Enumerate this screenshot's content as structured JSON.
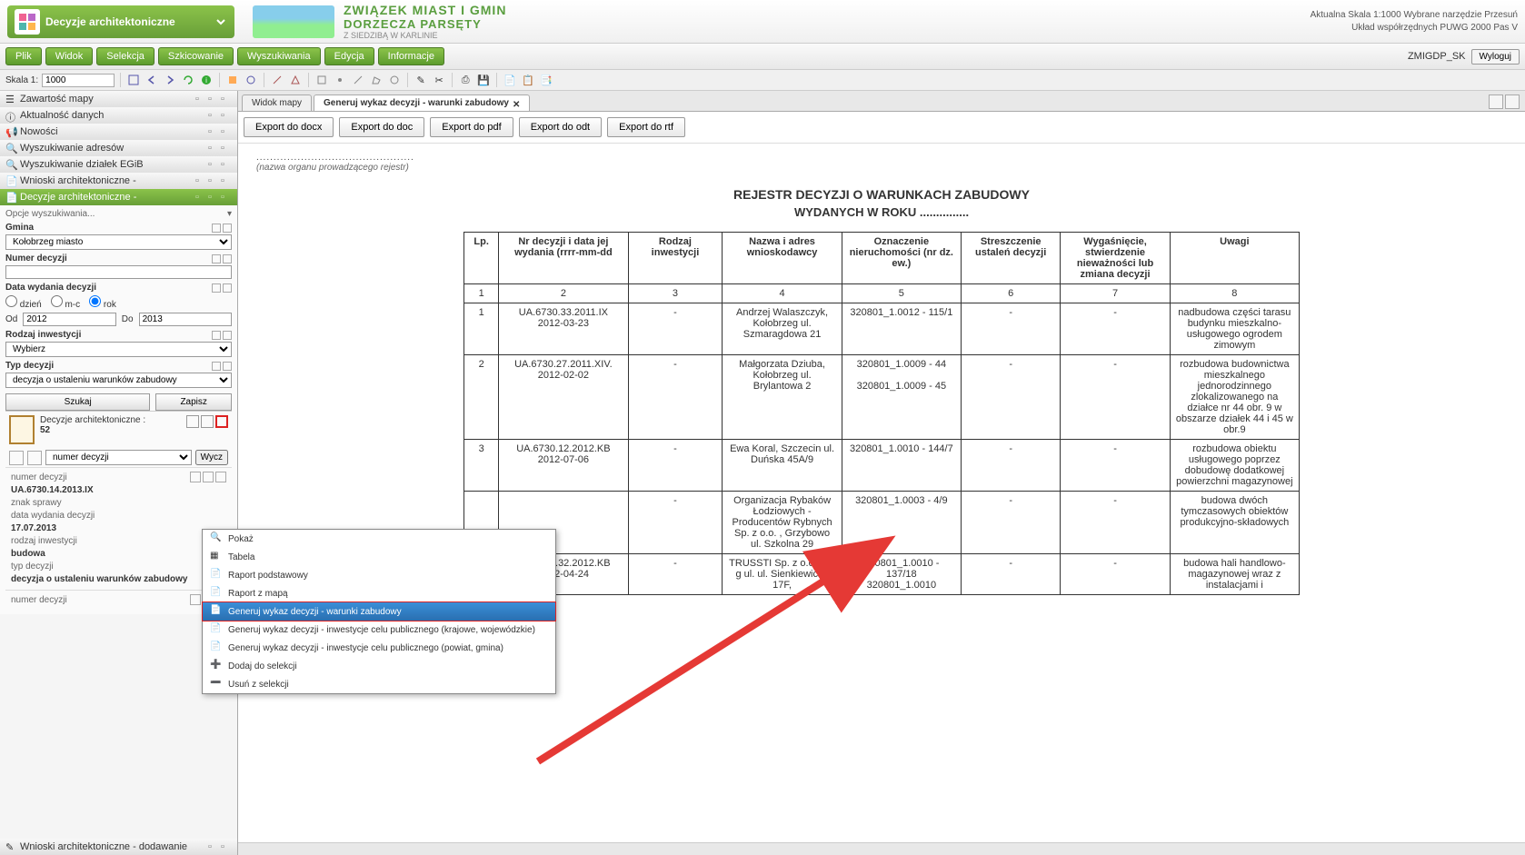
{
  "header": {
    "app_title": "Decyzje architektoniczne",
    "org_line1": "ZWIĄZEK MIAST I GMIN",
    "org_line2": "DORZECZA PARSĘTY",
    "org_line3": "Z SIEDZIBĄ W KARLINIE",
    "status_line1": "Aktualna Skala 1:1000   Wybrane narzędzie Przesuń",
    "status_line2": "Układ współrzędnych PUWG 2000 Pas V"
  },
  "menubar": {
    "items": [
      "Plik",
      "Widok",
      "Selekcja",
      "Szkicowanie",
      "Wyszukiwania",
      "Edycja",
      "Informacje"
    ],
    "user": "ZMIGDP_SK",
    "logout": "Wyloguj"
  },
  "toolbar": {
    "scale_label": "Skala 1:",
    "scale_value": "1000"
  },
  "sidebar": {
    "sections": [
      {
        "label": "Zawartość mapy"
      },
      {
        "label": "Aktualność danych"
      },
      {
        "label": "Nowości"
      },
      {
        "label": "Wyszukiwanie adresów"
      },
      {
        "label": "Wyszukiwanie działek EGiB"
      },
      {
        "label": "Wnioski architektoniczne -"
      },
      {
        "label": "Decyzje architektoniczne -",
        "active": true
      }
    ],
    "search": {
      "opts_label": "Opcje wyszukiwania...",
      "gmina_label": "Gmina",
      "gmina_value": "Kołobrzeg miasto",
      "numer_label": "Numer decyzji",
      "numer_value": "",
      "data_label": "Data wydania decyzji",
      "radio_dzien": "dzień",
      "radio_mc": "m-c",
      "radio_rok": "rok",
      "od_label": "Od",
      "od_value": "2012",
      "do_label": "Do",
      "do_value": "2013",
      "rodzaj_label": "Rodzaj inwestycji",
      "rodzaj_value": "Wybierz",
      "typ_label": "Typ decyzji",
      "typ_value": "decyzja o ustaleniu warunków zabudowy",
      "szukaj": "Szukaj",
      "zapisz": "Zapisz"
    },
    "results": {
      "title": "Decyzje architektoniczne :",
      "count": "52",
      "sort_field": "numer decyzji",
      "wyczysc": "Wycz",
      "item": {
        "l1_label": "numer decyzji",
        "l1_val": "UA.6730.14.2013.IX",
        "l2_label": "znak sprawy",
        "l3_label": "data wydania decyzji",
        "l3_val": "17.07.2013",
        "l4_label": "rodzaj inwestycji",
        "l4_val": "budowa",
        "l5_label": "typ decyzji",
        "l5_val": "decyzja o ustaleniu warunków zabudowy",
        "l6_label": "numer decyzji"
      }
    },
    "footer": "Wnioski architektoniczne - dodawanie"
  },
  "context_menu": {
    "items": [
      {
        "label": "Pokaż",
        "icon": "zoom"
      },
      {
        "label": "Tabela",
        "icon": "table"
      },
      {
        "label": "Raport podstawowy",
        "icon": "doc"
      },
      {
        "label": "Raport z mapą",
        "icon": "doc"
      },
      {
        "label": "Generuj wykaz decyzji - warunki zabudowy",
        "icon": "doc",
        "selected": true
      },
      {
        "label": "Generuj wykaz decyzji - inwestycje celu publicznego (krajowe, wojewódzkie)",
        "icon": "doc"
      },
      {
        "label": "Generuj wykaz decyzji - inwestycje celu publicznego (powiat, gmina)",
        "icon": "doc"
      },
      {
        "label": "Dodaj do selekcji",
        "icon": "plus"
      },
      {
        "label": "Usuń z selekcji",
        "icon": "minus"
      }
    ]
  },
  "tabs": {
    "tab1": "Widok mapy",
    "tab2": "Generuj wykaz decyzji - warunki zabudowy"
  },
  "export": {
    "buttons": [
      "Export do docx",
      "Export do doc",
      "Export do pdf",
      "Export do odt",
      "Export do rtf"
    ]
  },
  "document": {
    "meta_dots": "..............................................",
    "meta_sub": "(nazwa organu prowadzącego rejestr)",
    "title": "REJESTR DECYZJI O WARUNKACH ZABUDOWY",
    "subtitle": "WYDANYCH W ROKU ...............",
    "columns": [
      "Lp.",
      "Nr decyzji i data jej wydania (rrrr-mm-dd",
      "Rodzaj inwestycji",
      "Nazwa i adres wnioskodawcy",
      "Oznaczenie nieruchomości (nr dz. ew.)",
      "Streszczenie ustaleń decyzji",
      "Wygaśnięcie, stwierdzenie nieważności lub zmiana decyzji",
      "Uwagi"
    ],
    "numrow": [
      "1",
      "2",
      "3",
      "4",
      "5",
      "6",
      "7",
      "8"
    ],
    "rows": [
      {
        "lp": "1",
        "nr": "UA.6730.33.2011.IX 2012-03-23",
        "rodzaj": "-",
        "nazwa": "Andrzej Walaszczyk, Kołobrzeg ul. Szmaragdowa 21",
        "ozn": "320801_1.0012 - 115/1",
        "stresz": "-",
        "wyg": "-",
        "uwagi": "nadbudowa części tarasu budynku mieszkalno-usługowego ogrodem zimowym"
      },
      {
        "lp": "2",
        "nr": "UA.6730.27.2011.XIV. 2012-02-02",
        "rodzaj": "-",
        "nazwa": "Małgorzata  Dziuba, Kołobrzeg ul. Brylantowa 2",
        "ozn": "320801_1.0009 - 44\n\n320801_1.0009 - 45",
        "stresz": "-",
        "wyg": "-",
        "uwagi": "rozbudowa budownictwa mieszkalnego jednorodzinnego zlokalizowanego na działce nr 44 obr. 9 w obszarze działek 44 i 45 w obr.9"
      },
      {
        "lp": "3",
        "nr": "UA.6730.12.2012.KB 2012-07-06",
        "rodzaj": "-",
        "nazwa": "Ewa Koral,  Szczecin ul. Duńska 45A/9",
        "ozn": "320801_1.0010 - 144/7",
        "stresz": "-",
        "wyg": "-",
        "uwagi": "rozbudowa obiektu usługowego poprzez dobudowę dodatkowej powierzchni magazynowej"
      },
      {
        "lp": "",
        "nr": "",
        "rodzaj": "-",
        "nazwa": "Organizacja Rybaków Łodziowych - Producentów Rybnych Sp. z o.o. , Grzybowo ul. Szkolna 29",
        "ozn": "320801_1.0003 - 4/9",
        "stresz": "-",
        "wyg": "-",
        "uwagi": "budowa dwóch tymczasowych obiektów produkcyjno-składowych"
      },
      {
        "lp": "5",
        "nr": "UA.6730.32.2012.KB 2012-04-24",
        "rodzaj": "-",
        "nazwa": "TRUSSTI Sp. z o.o. , K-g ul. ul. Sienkiewicza 17F,",
        "ozn": "320801_1.0010 - 137/18\n320801_1.0010",
        "stresz": "-",
        "wyg": "-",
        "uwagi": "budowa hali handlowo-magazynowej wraz z instalacjami i"
      }
    ]
  },
  "colors": {
    "green_primary": "#8bc34a",
    "green_dark": "#689f38",
    "red_highlight": "#d22222",
    "arrow_red": "#e53935"
  }
}
